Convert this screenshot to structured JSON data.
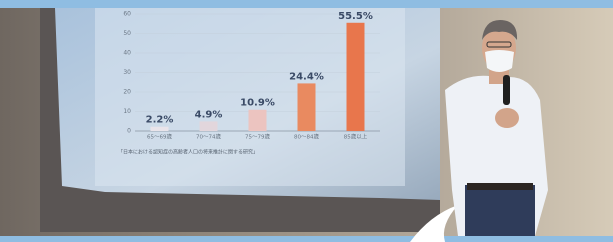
{
  "chart_data": {
    "type": "bar",
    "categories": [
      "65～69歳",
      "70～74歳",
      "75～79歳",
      "80～84歳",
      "85歳以上"
    ],
    "values": [
      2.2,
      4.9,
      10.9,
      24.4,
      55.5
    ],
    "value_labels": [
      "2.2%",
      "4.9%",
      "10.9%",
      "24.4%",
      "55.5%"
    ],
    "colors": [
      "#e9e4ea",
      "#e2d6dc",
      "#ecc4c0",
      "#e98a60",
      "#e8764c"
    ],
    "ylim": [
      0,
      60
    ],
    "yticks": [
      0,
      10,
      20,
      30,
      40,
      50,
      60
    ],
    "grid": true,
    "source": "「日本における認知症の高齢者人口の将来推計に関する研究」"
  }
}
